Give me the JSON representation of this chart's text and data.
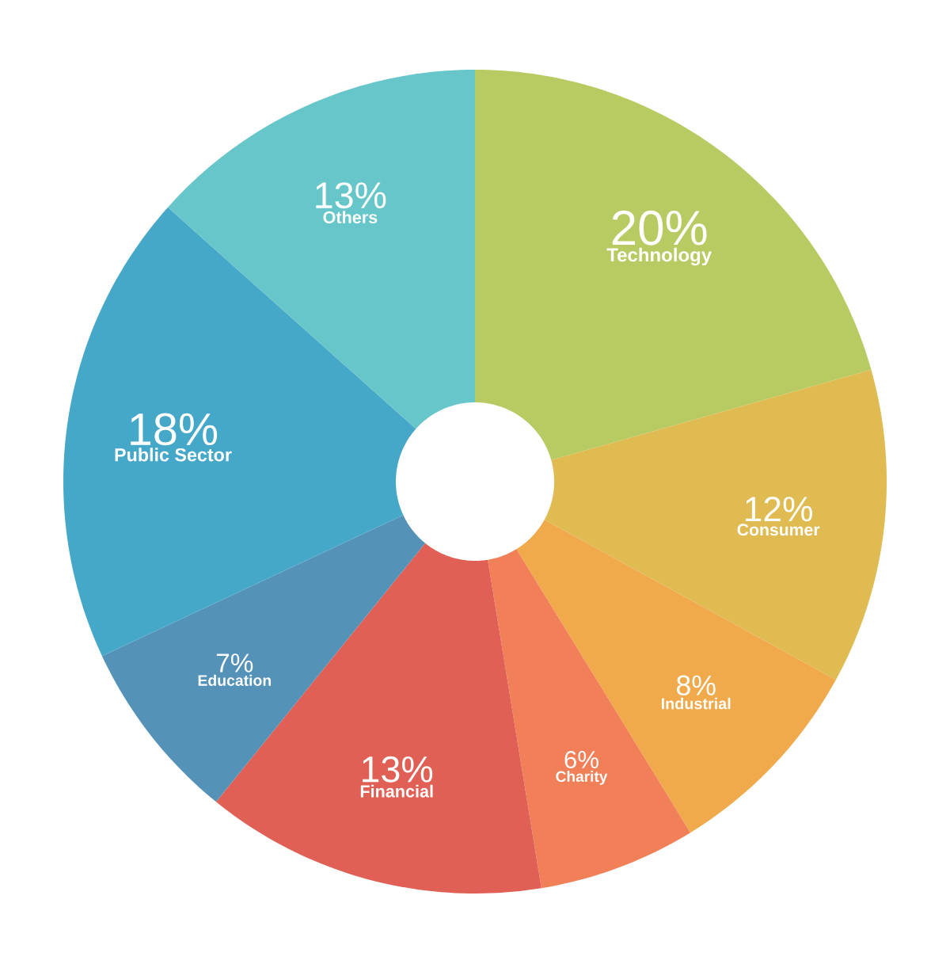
{
  "chart_data": {
    "type": "donut",
    "categories": [
      "Technology",
      "Consumer",
      "Industrial",
      "Charity",
      "Financial",
      "Education",
      "Public Sector",
      "Others"
    ],
    "values": [
      20,
      12,
      8,
      6,
      13,
      7,
      18,
      13
    ],
    "value_labels": [
      "20%",
      "12%",
      "8%",
      "6%",
      "13%",
      "7%",
      "18%",
      "13%"
    ],
    "colors": [
      "#b7cb62",
      "#dfbb52",
      "#f0aa4c",
      "#f17f57",
      "#e06055",
      "#5592b8",
      "#45a8c9",
      "#66c6c9"
    ]
  }
}
